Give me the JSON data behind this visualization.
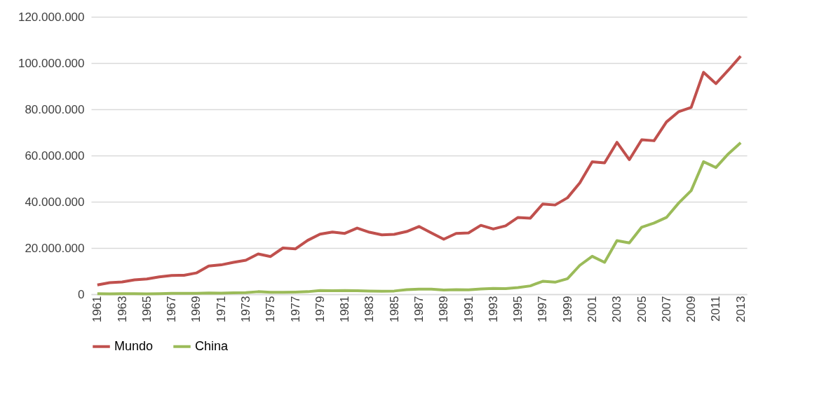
{
  "chart_data": {
    "type": "line",
    "categories": [
      "1961",
      null,
      "1963",
      null,
      "1965",
      null,
      "1967",
      null,
      "1969",
      null,
      "1971",
      null,
      "1973",
      null,
      "1975",
      null,
      "1977",
      null,
      "1979",
      null,
      "1981",
      null,
      "1983",
      null,
      "1985",
      null,
      "1987",
      null,
      "1989",
      null,
      "1991",
      null,
      "1993",
      null,
      "1995",
      null,
      "1997",
      null,
      "1999",
      null,
      "2001",
      null,
      "2003",
      null,
      "2005",
      null,
      "2007",
      null,
      "2009",
      null,
      "2011",
      null,
      "2013"
    ],
    "series": [
      {
        "name": "Mundo",
        "color": "#c0504d",
        "values": [
          4000000,
          5000000,
          5300000,
          6200000,
          6600000,
          7500000,
          8100000,
          8200000,
          9200000,
          12200000,
          12700000,
          13800000,
          14700000,
          17400000,
          16300000,
          20000000,
          19600000,
          23300000,
          26000000,
          26900000,
          26300000,
          28600000,
          26800000,
          25700000,
          25900000,
          27100000,
          29300000,
          26500000,
          23800000,
          26300000,
          26500000,
          29800000,
          28200000,
          29600000,
          33200000,
          32900000,
          39000000,
          38600000,
          41700000,
          48200000,
          57300000,
          56800000,
          65700000,
          58200000,
          66800000,
          66400000,
          74500000,
          79000000,
          80800000,
          96000000,
          91100000,
          96900000,
          103000000
        ]
      },
      {
        "name": "China",
        "color": "#9bbb59",
        "values": [
          200000,
          150000,
          200000,
          250000,
          150000,
          200000,
          350000,
          350000,
          400000,
          500000,
          450000,
          600000,
          700000,
          1100000,
          800000,
          800000,
          900000,
          1100000,
          1600000,
          1500000,
          1600000,
          1500000,
          1400000,
          1300000,
          1400000,
          2000000,
          2200000,
          2200000,
          1800000,
          2000000,
          1900000,
          2300000,
          2500000,
          2400000,
          2900000,
          3600000,
          5600000,
          5200000,
          6700000,
          12500000,
          16400000,
          13800000,
          23200000,
          22200000,
          29000000,
          30800000,
          33200000,
          39500000,
          44800000,
          57300000,
          54800000,
          60700000,
          65500000
        ]
      }
    ],
    "ylim": [
      0,
      120000000
    ],
    "yticks": [
      0,
      {
        "value": 20000000,
        "label": "20.000.000"
      },
      {
        "value": 40000000,
        "label": "40.000.000"
      },
      {
        "value": 60000000,
        "label": "60.000.000"
      },
      {
        "value": 80000000,
        "label": "80.000.000"
      },
      {
        "value": 100000000,
        "label": "100.000.000"
      },
      {
        "value": 120000000,
        "label": "120.000.000"
      }
    ],
    "grid": "y",
    "legend": "bottom",
    "marker": "none",
    "line_style": "solid"
  }
}
